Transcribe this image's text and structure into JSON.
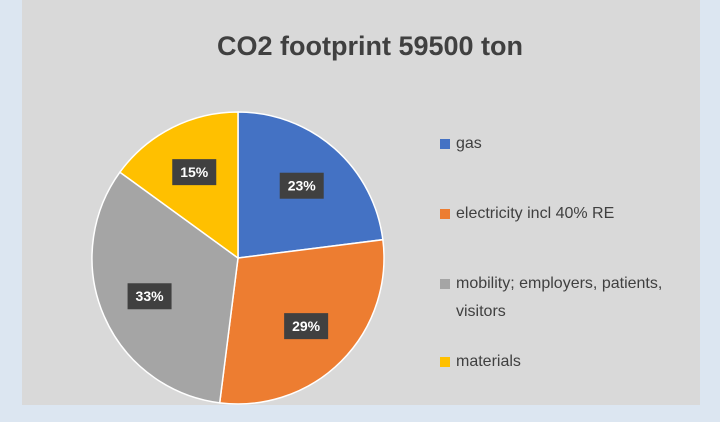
{
  "chart_data": {
    "type": "pie",
    "title": "CO2  footprint 59500 ton",
    "categories": [
      "gas",
      "electricity incl 40% RE",
      "mobility; employers, patients, visitors",
      "materials"
    ],
    "values": [
      23,
      29,
      33,
      15
    ],
    "value_labels": [
      "23%",
      "29%",
      "33%",
      "15%"
    ],
    "colors": [
      "#4472c4",
      "#ed7d31",
      "#a5a5a5",
      "#ffc000"
    ],
    "legend": "right"
  }
}
